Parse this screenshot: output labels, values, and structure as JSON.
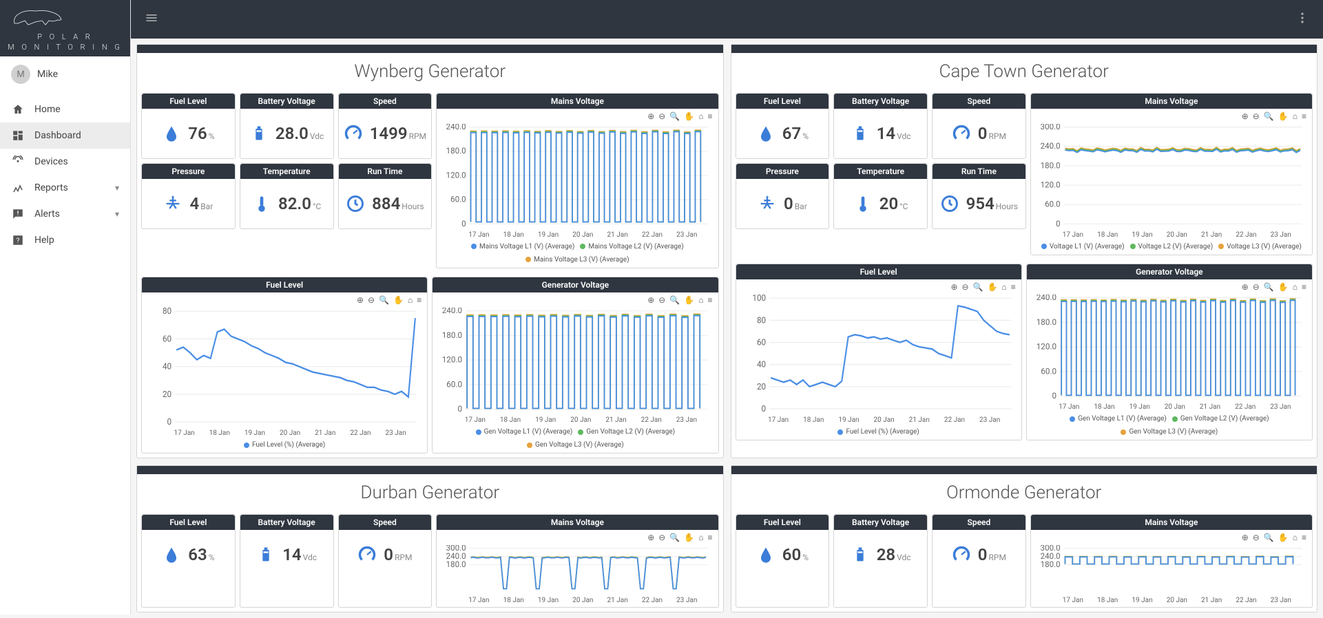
{
  "brand": {
    "line1": "P O L A R",
    "line2": "M O N I T O R I N G"
  },
  "user": {
    "initial": "M",
    "name": "Mike"
  },
  "nav": [
    {
      "key": "home",
      "label": "Home",
      "icon": "home",
      "active": false,
      "expandable": false
    },
    {
      "key": "dashboard",
      "label": "Dashboard",
      "icon": "dashboard",
      "active": true,
      "expandable": false
    },
    {
      "key": "devices",
      "label": "Devices",
      "icon": "devices",
      "active": false,
      "expandable": false
    },
    {
      "key": "reports",
      "label": "Reports",
      "icon": "reports",
      "active": false,
      "expandable": true
    },
    {
      "key": "alerts",
      "label": "Alerts",
      "icon": "alerts",
      "active": false,
      "expandable": true
    },
    {
      "key": "help",
      "label": "Help",
      "icon": "help",
      "active": false,
      "expandable": false
    }
  ],
  "colors": {
    "blue": "#4a8ee6",
    "green": "#5fb85f",
    "orange": "#e6a23c",
    "icon_blue": "#3b7dd8",
    "header_dark": "#2f3640",
    "grid": "#e8e8e8",
    "axis_text": "#666666"
  },
  "chart_common": {
    "xticks": [
      "17 Jan",
      "18 Jan",
      "19 Jan",
      "20 Jan",
      "21 Jan",
      "22 Jan",
      "23 Jan"
    ],
    "toolbar_icons": [
      "⊕",
      "⊖",
      "🔍",
      "✋",
      "⌂",
      "≡"
    ]
  },
  "generators": [
    {
      "title": "Wynberg Generator",
      "metrics": {
        "fuel_level": {
          "label": "Fuel Level",
          "value": "76",
          "unit": "%",
          "icon": "drop"
        },
        "battery": {
          "label": "Battery Voltage",
          "value": "28.0",
          "unit": "Vdc",
          "icon": "battery"
        },
        "speed": {
          "label": "Speed",
          "value": "1499",
          "unit": "RPM",
          "icon": "gauge"
        },
        "pressure": {
          "label": "Pressure",
          "value": "4",
          "unit": "Bar",
          "icon": "pressure"
        },
        "temperature": {
          "label": "Temperature",
          "value": "82.0",
          "unit": "°C",
          "icon": "thermo"
        },
        "runtime": {
          "label": "Run Time",
          "value": "884",
          "unit": "Hours",
          "icon": "clock"
        }
      },
      "charts": {
        "mains_voltage": {
          "title": "Mains Voltage",
          "type": "line",
          "ylim": [
            0,
            240
          ],
          "yticks": [
            0,
            60,
            120,
            180,
            240
          ],
          "pattern": "square_wave",
          "wave_count": 22,
          "high": 230,
          "low": 5,
          "legend": [
            {
              "label": "Mains Voltage L1 (V) (Average)",
              "color": "#4a8ee6"
            },
            {
              "label": "Mains Voltage L2 (V) (Average)",
              "color": "#5fb85f"
            },
            {
              "label": "Mains Voltage L3 (V) (Average)",
              "color": "#e6a23c"
            }
          ]
        },
        "fuel_level_chart": {
          "title": "Fuel Level",
          "type": "line",
          "ylim": [
            0,
            80
          ],
          "yticks": [
            0,
            20,
            40,
            60,
            80
          ],
          "series": [
            {
              "color": "#4a8ee6",
              "data": [
                52,
                54,
                50,
                45,
                48,
                46,
                65,
                67,
                62,
                60,
                58,
                55,
                53,
                50,
                48,
                46,
                43,
                42,
                40,
                38,
                36,
                35,
                34,
                33,
                32,
                30,
                29,
                27,
                25,
                25,
                23,
                22,
                20,
                22,
                18,
                75
              ]
            }
          ],
          "legend": [
            {
              "label": "Fuel Level (%) (Average)",
              "color": "#4a8ee6"
            }
          ]
        },
        "gen_voltage": {
          "title": "Generator Voltage",
          "type": "line",
          "ylim": [
            0,
            240
          ],
          "yticks": [
            0,
            60,
            120,
            180,
            240
          ],
          "pattern": "square_wave",
          "wave_count": 20,
          "high": 230,
          "low": 2,
          "legend": [
            {
              "label": "Gen Voltage L1 (V) (Average)",
              "color": "#4a8ee6"
            },
            {
              "label": "Gen Voltage L2 (V) (Average)",
              "color": "#5fb85f"
            },
            {
              "label": "Gen Voltage L3 (V) (Average)",
              "color": "#e6a23c"
            }
          ]
        }
      }
    },
    {
      "title": "Cape Town Generator",
      "metrics": {
        "fuel_level": {
          "label": "Fuel Level",
          "value": "67",
          "unit": "%",
          "icon": "drop"
        },
        "battery": {
          "label": "Battery Voltage",
          "value": "14",
          "unit": "Vdc",
          "icon": "battery"
        },
        "speed": {
          "label": "Speed",
          "value": "0",
          "unit": "RPM",
          "icon": "gauge"
        },
        "pressure": {
          "label": "Pressure",
          "value": "0",
          "unit": "Bar",
          "icon": "pressure"
        },
        "temperature": {
          "label": "Temperature",
          "value": "20",
          "unit": "°C",
          "icon": "thermo"
        },
        "runtime": {
          "label": "Run Time",
          "value": "954",
          "unit": "Hours",
          "icon": "clock"
        }
      },
      "charts": {
        "mains_voltage": {
          "title": "Mains Voltage",
          "type": "line",
          "ylim": [
            0,
            300
          ],
          "yticks": [
            0,
            60,
            120,
            180,
            240,
            300
          ],
          "pattern": "flat_noisy",
          "level": 232,
          "noise": 6,
          "legend": [
            {
              "label": "Voltage L1 (V) (Average)",
              "color": "#4a8ee6"
            },
            {
              "label": "Voltage L2 (V) (Average)",
              "color": "#5fb85f"
            },
            {
              "label": "Voltage L3 (V) (Average)",
              "color": "#e6a23c"
            }
          ]
        },
        "fuel_level_chart": {
          "title": "Fuel Level",
          "type": "line",
          "ylim": [
            0,
            100
          ],
          "yticks": [
            0,
            20,
            40,
            60,
            80,
            100
          ],
          "series": [
            {
              "color": "#4a8ee6",
              "data": [
                28,
                26,
                24,
                26,
                22,
                26,
                20,
                22,
                24,
                22,
                20,
                25,
                65,
                67,
                66,
                64,
                65,
                63,
                64,
                62,
                60,
                62,
                58,
                56,
                55,
                54,
                50,
                48,
                46,
                93,
                92,
                90,
                88,
                80,
                75,
                70,
                68,
                67
              ]
            }
          ],
          "legend": [
            {
              "label": "Fuel Level (%) (Average)",
              "color": "#4a8ee6"
            }
          ]
        },
        "gen_voltage": {
          "title": "Generator Voltage",
          "type": "line",
          "ylim": [
            0,
            240
          ],
          "yticks": [
            0,
            60,
            120,
            180,
            240
          ],
          "pattern": "square_wave",
          "wave_count": 24,
          "high": 235,
          "low": 2,
          "legend": [
            {
              "label": "Gen Voltage L1 (V) (Average)",
              "color": "#4a8ee6"
            },
            {
              "label": "Gen Voltage L2 (V) (Average)",
              "color": "#5fb85f"
            },
            {
              "label": "Gen Voltage L3 (V) (Average)",
              "color": "#e6a23c"
            }
          ]
        }
      }
    },
    {
      "title": "Durban Generator",
      "metrics": {
        "fuel_level": {
          "label": "Fuel Level",
          "value": "63",
          "unit": "%",
          "icon": "drop"
        },
        "battery": {
          "label": "Battery Voltage",
          "value": "14",
          "unit": "Vdc",
          "icon": "battery"
        },
        "speed": {
          "label": "Speed",
          "value": "0",
          "unit": "RPM",
          "icon": "gauge"
        },
        "pressure": {
          "label": "Pressure",
          "value": "",
          "unit": "",
          "icon": "pressure"
        },
        "temperature": {
          "label": "Temperature",
          "value": "",
          "unit": "",
          "icon": "thermo"
        },
        "runtime": {
          "label": "Run Time",
          "value": "",
          "unit": "",
          "icon": "clock"
        }
      },
      "charts": {
        "mains_voltage": {
          "title": "Mains Voltage",
          "type": "line",
          "ylim": [
            0,
            300
          ],
          "yticks": [
            180,
            240,
            300
          ],
          "pattern": "mostly_flat_dips",
          "level": 235,
          "dips": 6
        }
      },
      "partial": true
    },
    {
      "title": "Ormonde Generator",
      "metrics": {
        "fuel_level": {
          "label": "Fuel Level",
          "value": "60",
          "unit": "%",
          "icon": "drop"
        },
        "battery": {
          "label": "Battery Voltage",
          "value": "28",
          "unit": "Vdc",
          "icon": "battery"
        },
        "speed": {
          "label": "Speed",
          "value": "0",
          "unit": "RPM",
          "icon": "gauge"
        },
        "pressure": {
          "label": "Pressure",
          "value": "",
          "unit": "",
          "icon": "pressure"
        },
        "temperature": {
          "label": "Temperature",
          "value": "",
          "unit": "",
          "icon": "thermo"
        },
        "runtime": {
          "label": "Run Time",
          "value": "",
          "unit": "",
          "icon": "clock"
        }
      },
      "charts": {
        "mains_voltage": {
          "title": "Mains Voltage",
          "type": "line",
          "ylim": [
            0,
            300
          ],
          "yticks": [
            180,
            240,
            300
          ],
          "pattern": "square_wave",
          "wave_count": 16,
          "high": 240,
          "low": 185
        }
      },
      "partial": true
    }
  ]
}
